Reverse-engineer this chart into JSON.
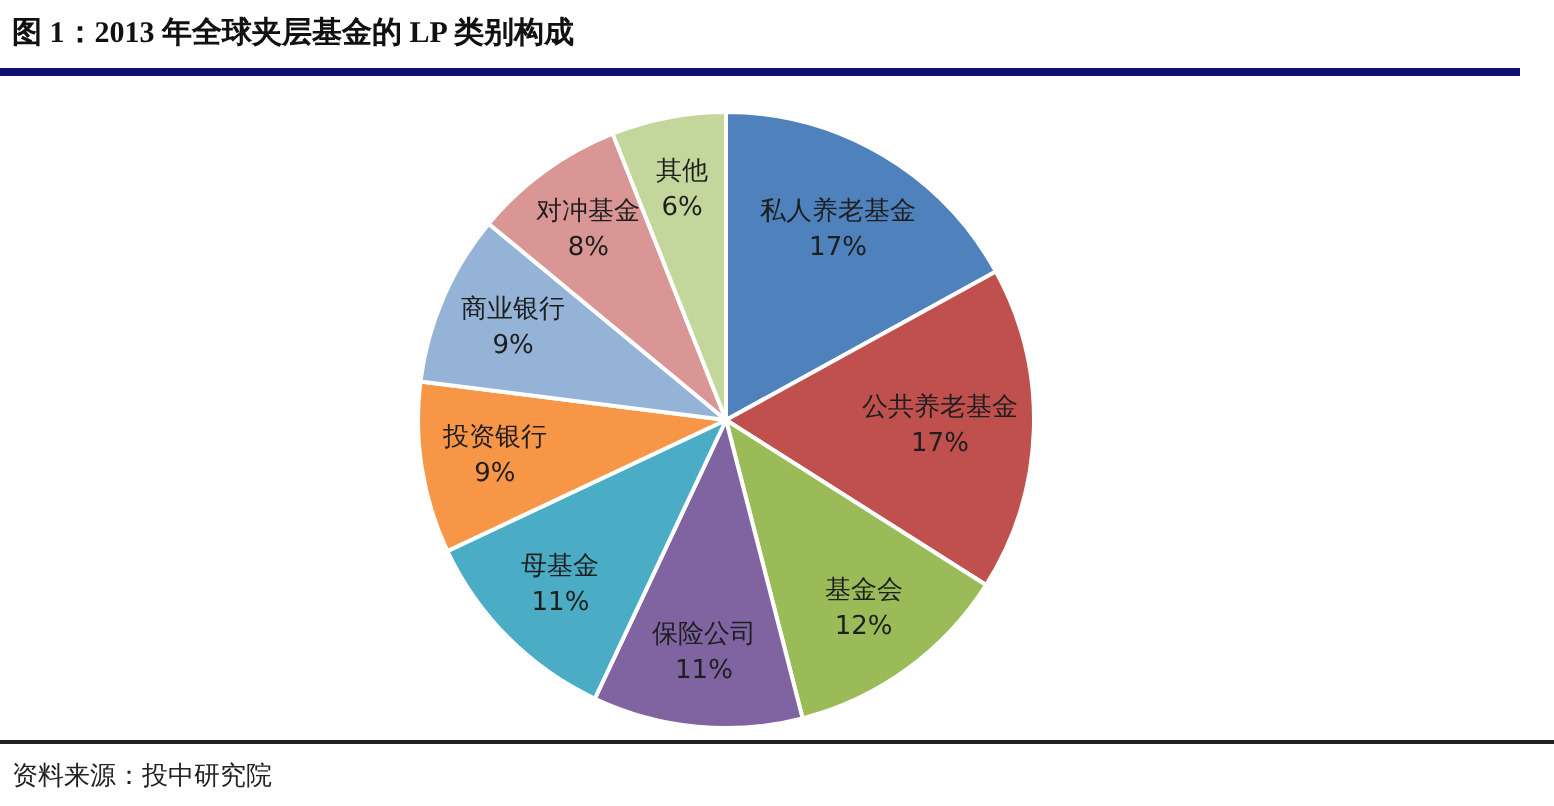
{
  "chart_data": {
    "type": "pie",
    "title": "图 1：2013 年全球夹层基金的 LP 类别构成",
    "categories": [
      "私人养老基金",
      "公共养老基金",
      "基金会",
      "保险公司",
      "母基金",
      "投资银行",
      "商业银行",
      "对冲基金",
      "其他"
    ],
    "values": [
      17,
      17,
      12,
      11,
      11,
      9,
      9,
      8,
      6
    ],
    "colors": [
      "#4f81bd",
      "#c0504d",
      "#9bbb59",
      "#8064a2",
      "#4bacc6",
      "#f79646",
      "#95b3d7",
      "#d99694",
      "#c3d69b"
    ],
    "value_labels": [
      "17%",
      "17%",
      "12%",
      "11%",
      "11%",
      "9%",
      "9%",
      "8%",
      "6%"
    ],
    "legend": false,
    "annotations": [
      "资料来源：投中研究院"
    ]
  }
}
